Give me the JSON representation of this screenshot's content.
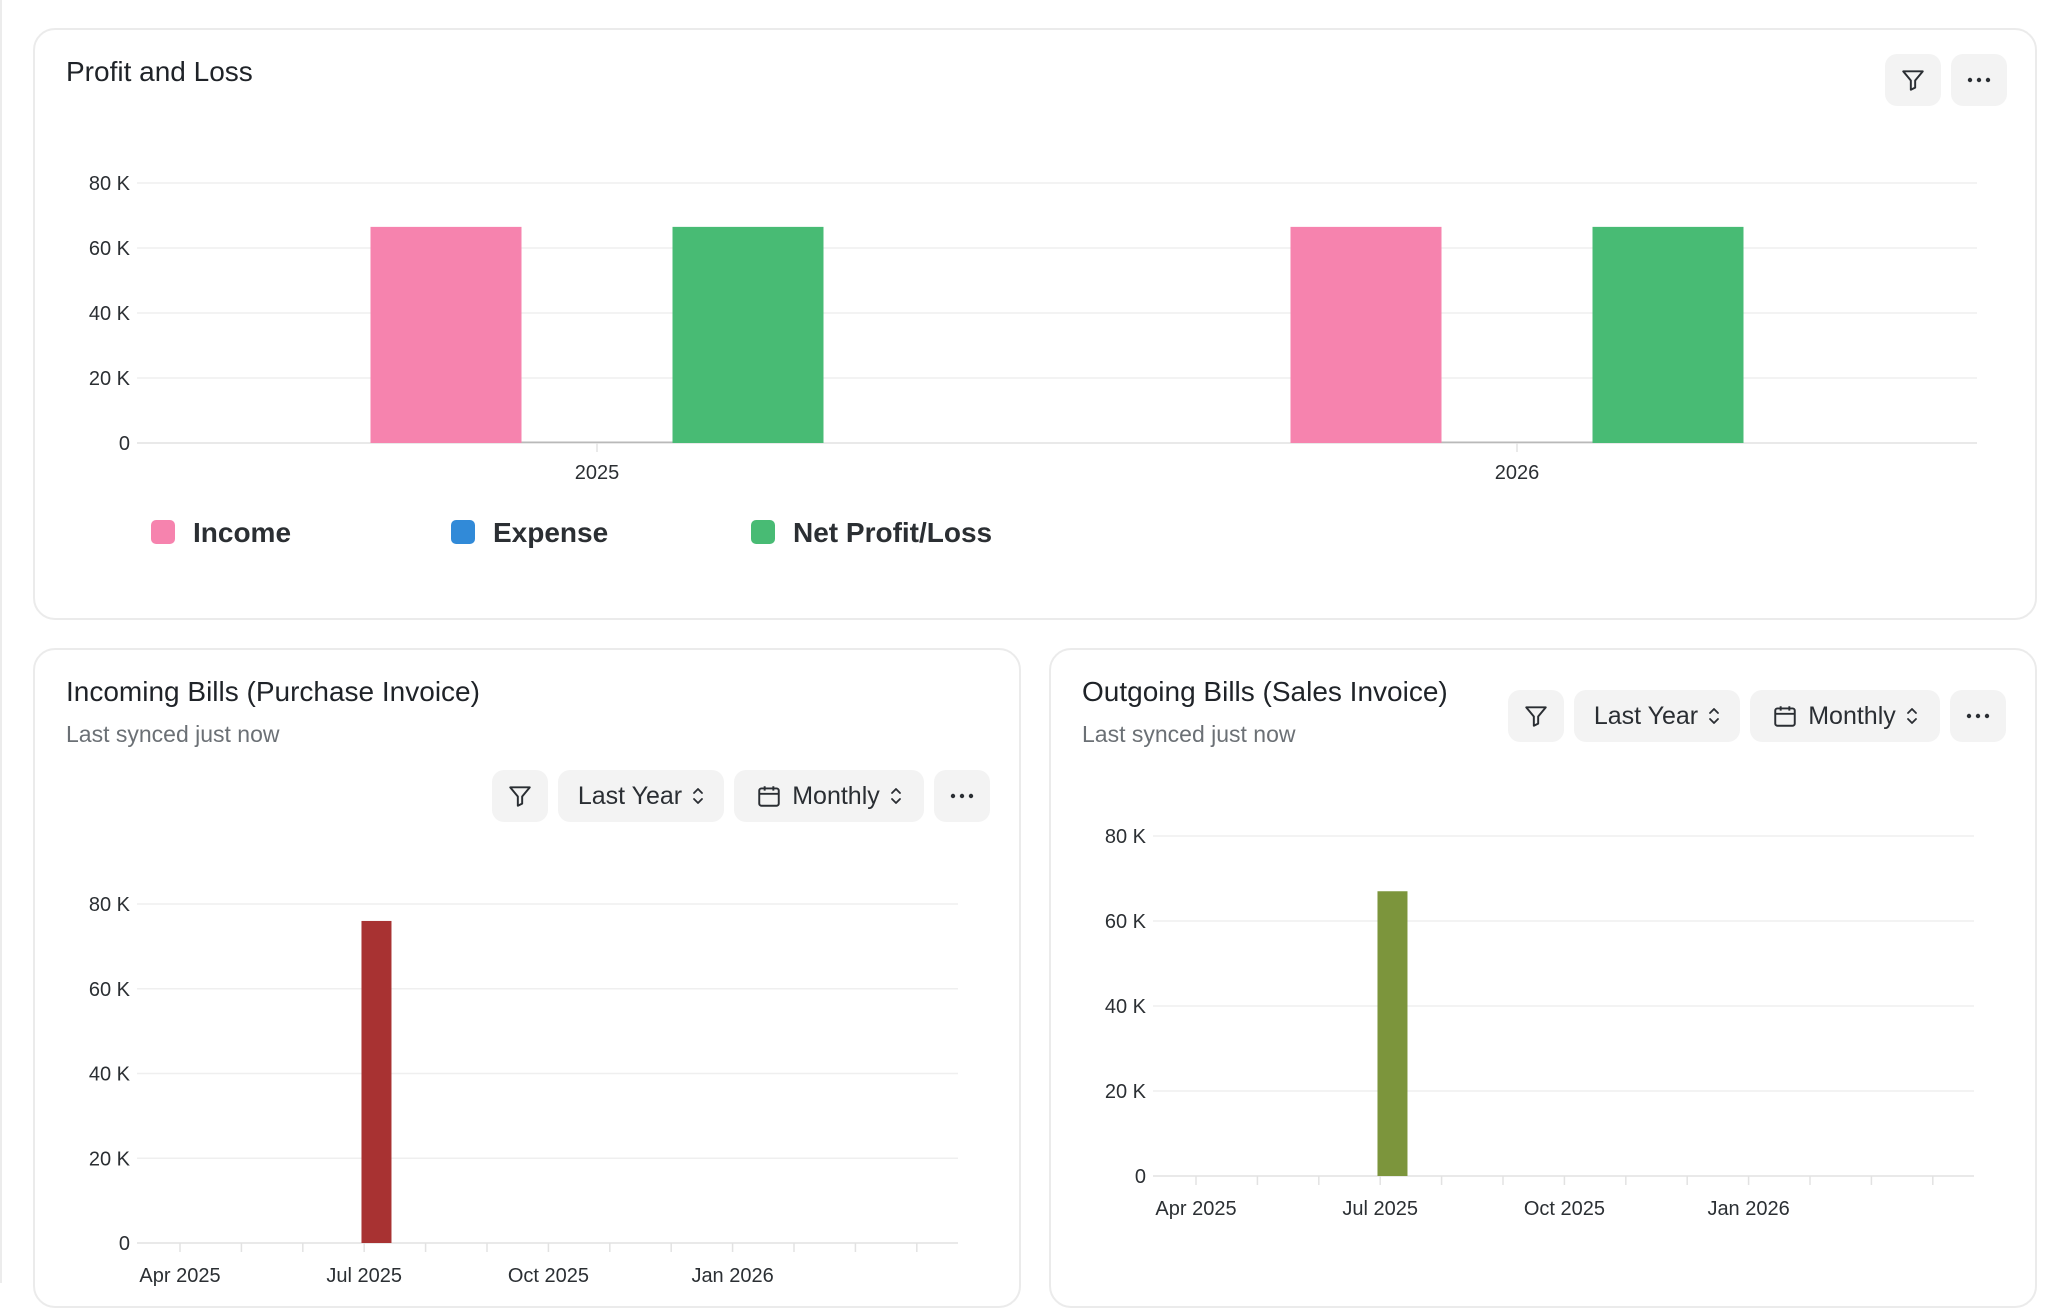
{
  "profit_loss": {
    "title": "Profit and Loss",
    "chart_data": {
      "type": "bar",
      "categories": [
        "2025",
        "2026"
      ],
      "series": [
        {
          "name": "Income",
          "values": [
            66500,
            66500
          ],
          "color": "#f683ae"
        },
        {
          "name": "Expense",
          "values": [
            0,
            0
          ],
          "color": "#318ad8"
        },
        {
          "name": "Net Profit/Loss",
          "values": [
            66500,
            66500
          ],
          "color": "#48bb74"
        }
      ],
      "y_ticks": [
        "0",
        "20 K",
        "40 K",
        "60 K",
        "80 K"
      ],
      "ylim": [
        0,
        80000
      ],
      "grid": true,
      "legend_position": "bottom-left"
    }
  },
  "incoming_bills": {
    "title": "Incoming Bills (Purchase Invoice)",
    "subtitle": "Last synced just now",
    "period_label": "Last Year",
    "interval_label": "Monthly",
    "chart_data": {
      "type": "bar",
      "x_labels": [
        "Apr 2025",
        "Jul 2025",
        "Oct 2025",
        "Jan 2026"
      ],
      "categories": [
        "Apr 2025",
        "May 2025",
        "Jun 2025",
        "Jul 2025",
        "Aug 2025",
        "Sep 2025",
        "Oct 2025",
        "Nov 2025",
        "Dec 2025",
        "Jan 2026",
        "Feb 2026",
        "Mar 2026",
        "Apr 2026"
      ],
      "values": [
        0,
        0,
        0,
        0,
        76000,
        0,
        0,
        0,
        0,
        0,
        0,
        0,
        0
      ],
      "color": "#a83232",
      "y_ticks": [
        "0",
        "20 K",
        "40 K",
        "60 K",
        "80 K"
      ],
      "ylim": [
        0,
        80000
      ],
      "grid": true
    }
  },
  "outgoing_bills": {
    "title": "Outgoing Bills (Sales Invoice)",
    "subtitle": "Last synced just now",
    "period_label": "Last Year",
    "interval_label": "Monthly",
    "chart_data": {
      "type": "bar",
      "x_labels": [
        "Apr 2025",
        "Jul 2025",
        "Oct 2025",
        "Jan 2026"
      ],
      "categories": [
        "Apr 2025",
        "May 2025",
        "Jun 2025",
        "Jul 2025",
        "Aug 2025",
        "Sep 2025",
        "Oct 2025",
        "Nov 2025",
        "Dec 2025",
        "Jan 2026",
        "Feb 2026",
        "Mar 2026",
        "Apr 2026"
      ],
      "values": [
        0,
        0,
        0,
        0,
        67000,
        0,
        0,
        0,
        0,
        0,
        0,
        0,
        0
      ],
      "color": "#7c953c",
      "y_ticks": [
        "0",
        "20 K",
        "40 K",
        "60 K",
        "80 K"
      ],
      "ylim": [
        0,
        80000
      ],
      "grid": true
    }
  }
}
